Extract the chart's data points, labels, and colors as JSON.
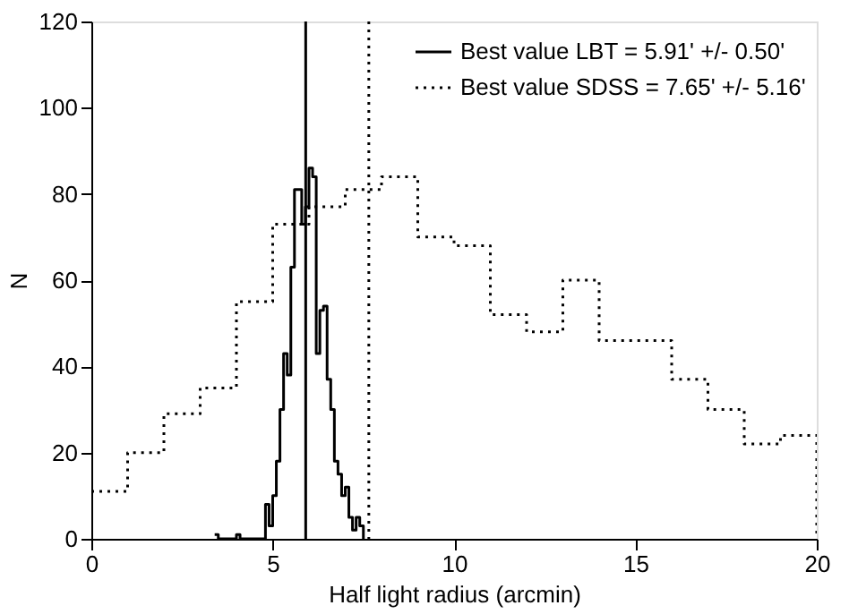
{
  "chart_data": {
    "type": "step",
    "xlabel": "Half light radius (arcmin)",
    "ylabel": "N",
    "xlim": [
      0,
      20
    ],
    "xticks": [
      0,
      5,
      10,
      15,
      20
    ],
    "ylim": [
      0,
      120
    ],
    "yticks": [
      0,
      20,
      40,
      60,
      80,
      100,
      120
    ],
    "grid": false,
    "legend": "top right",
    "series": [
      {
        "name": "Best value LBT = 5.91' +/- 0.50'",
        "color": "#000000",
        "line_style": "solid",
        "x": [
          3.4,
          3.5,
          3.6,
          3.7,
          3.8,
          3.9,
          4.0,
          4.1,
          4.2,
          4.3,
          4.4,
          4.5,
          4.6,
          4.7,
          4.8,
          4.9,
          5.0,
          5.1,
          5.2,
          5.3,
          5.4,
          5.5,
          5.6,
          5.7,
          5.8,
          5.9,
          6.0,
          6.1,
          6.2,
          6.3,
          6.4,
          6.5,
          6.6,
          6.7,
          6.8,
          6.9,
          7.0,
          7.1,
          7.2,
          7.3,
          7.4,
          7.5
        ],
        "values": [
          1,
          0,
          0,
          0,
          0,
          0,
          1,
          0,
          0,
          0,
          0,
          0,
          0,
          0,
          8,
          3,
          10,
          18,
          30,
          43,
          38,
          63,
          81,
          81,
          73,
          77,
          86,
          84,
          43,
          53,
          54,
          37,
          30,
          18,
          15,
          10,
          12,
          5,
          2,
          5,
          3,
          0
        ]
      },
      {
        "name": "Best value SDSS = 7.65' +/- 5.16'",
        "color": "#000000",
        "line_style": "dotted",
        "x": [
          0,
          1,
          2,
          3,
          4,
          5,
          6,
          7,
          8,
          9,
          10,
          11,
          12,
          13,
          14,
          15,
          16,
          17,
          18,
          19,
          20
        ],
        "values": [
          11,
          20,
          29,
          35,
          55,
          73,
          77,
          81,
          84,
          70,
          68,
          52,
          48,
          60,
          46,
          46,
          37,
          30,
          22,
          24,
          0
        ]
      }
    ],
    "ref_lines": [
      {
        "axis": "x",
        "value": 5.91,
        "line_style": "solid",
        "color": "#000000"
      },
      {
        "axis": "x",
        "value": 7.65,
        "line_style": "dotted",
        "color": "#000000"
      }
    ]
  }
}
